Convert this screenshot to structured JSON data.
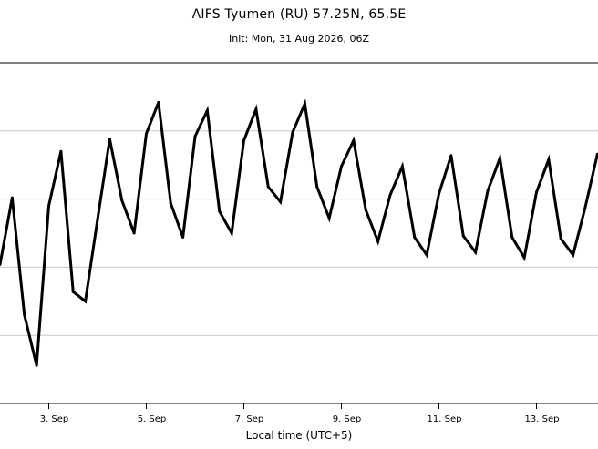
{
  "title": "AIFS Tyumen (RU) 57.25N, 65.5E",
  "subtitle": "Init: Mon, 31 Aug 2026, 06Z",
  "chart_data": {
    "type": "line",
    "title": "AIFS Tyumen (RU) 57.25N, 65.5E",
    "subtitle": "Init: Mon, 31 Aug 2026, 06Z",
    "xlabel": "Local time (UTC+5)",
    "ylabel": "",
    "x_tick_labels": [
      "3. Sep",
      "5. Sep",
      "7. Sep",
      "9. Sep",
      "11. Sep",
      "13. Sep"
    ],
    "grid": true,
    "series": [
      {
        "values": [
          8.2,
          13.1,
          4.5,
          0.8,
          12.5,
          16.5,
          6.2,
          5.5,
          11.5,
          17.4,
          12.9,
          10.5,
          17.8,
          20.1,
          12.7,
          10.2,
          17.6,
          19.5,
          12.1,
          10.5,
          17.3,
          19.6,
          13.9,
          12.8,
          17.9,
          20.0,
          13.9,
          11.6,
          15.4,
          17.3,
          12.2,
          9.9,
          13.3,
          15.4,
          10.2,
          8.9,
          13.4,
          16.2,
          10.3,
          9.1,
          13.6,
          16.0,
          10.2,
          8.7,
          13.5,
          15.9,
          10.1,
          8.9,
          12.4,
          16.3
        ]
      }
    ],
    "x_start": "2 Sep",
    "x_step_hours": 6
  }
}
